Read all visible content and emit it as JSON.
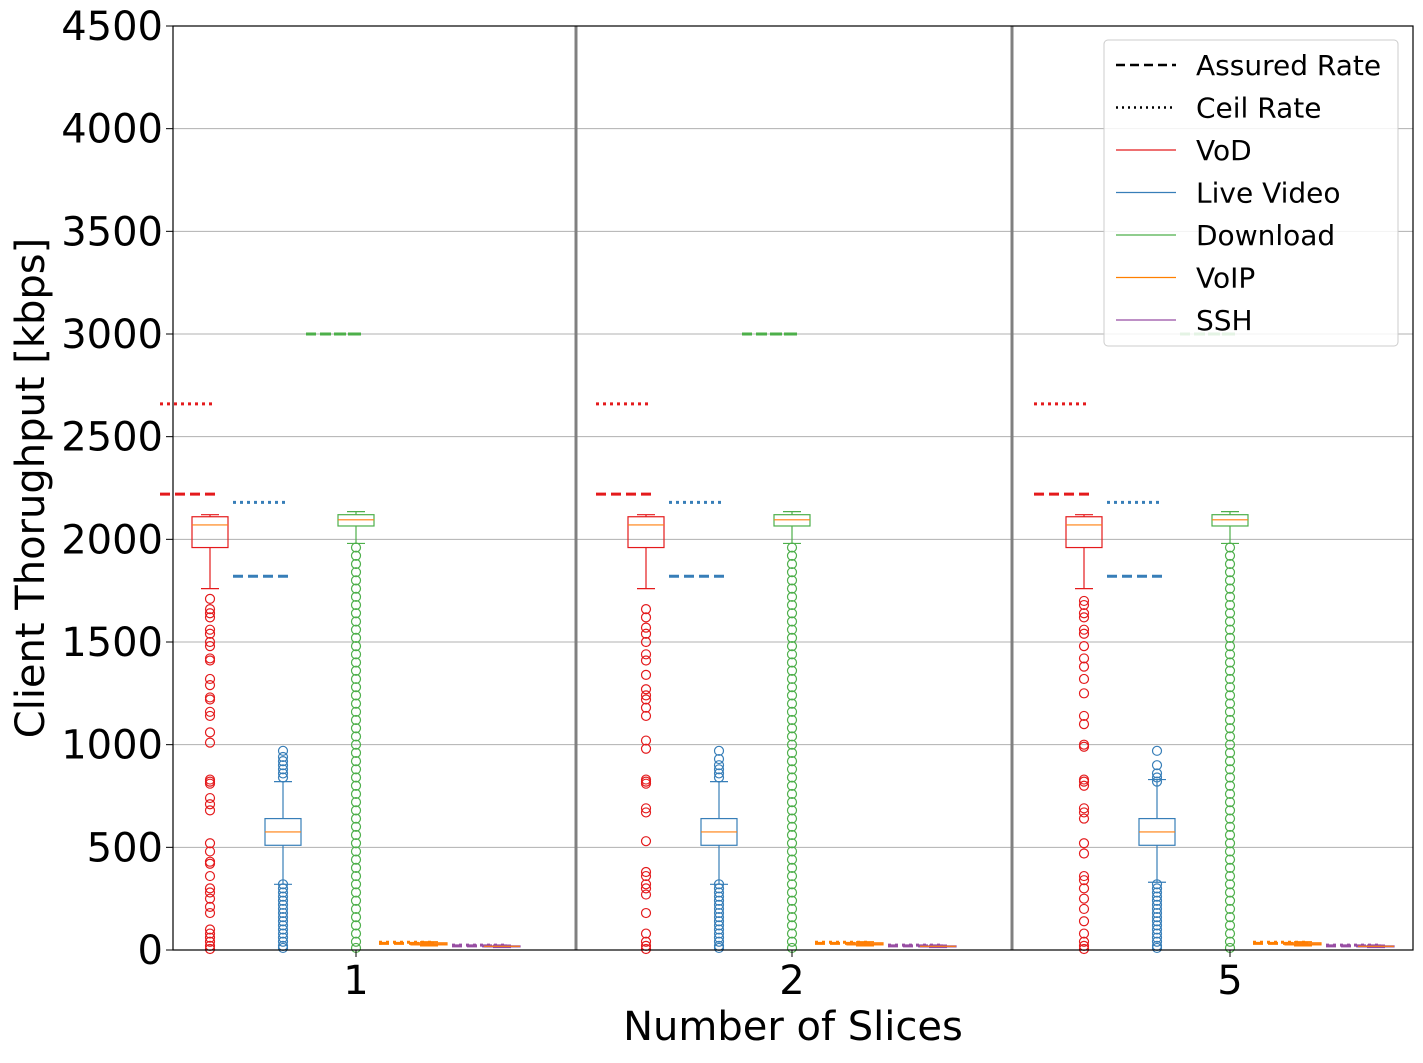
{
  "chart_data": {
    "type": "box",
    "title": "",
    "xlabel": "Number of Slices",
    "ylabel": "Client Thorughput [kbps]",
    "ylim": [
      0,
      4500
    ],
    "yticks": [
      0,
      500,
      1000,
      1500,
      2000,
      2500,
      3000,
      3500,
      4000,
      4500
    ],
    "ytick_labels": [
      "0",
      "500",
      "1000",
      "1500",
      "2000",
      "2500",
      "3000",
      "3500",
      "4000",
      "4500"
    ],
    "categories": [
      "1",
      "2",
      "5"
    ],
    "grid": "horizontal",
    "legend_position": "top-right",
    "legend": [
      {
        "label": "Assured Rate",
        "style": "dashed",
        "color": "#000000"
      },
      {
        "label": "Ceil Rate",
        "style": "dotted",
        "color": "#000000"
      },
      {
        "label": "VoD",
        "style": "solid",
        "color": "#e41a1c"
      },
      {
        "label": "Live Video",
        "style": "solid",
        "color": "#377eb8"
      },
      {
        "label": "Download",
        "style": "solid",
        "color": "#4daf4a"
      },
      {
        "label": "VoIP",
        "style": "solid",
        "color": "#ff7f00"
      },
      {
        "label": "SSH",
        "style": "solid",
        "color": "#984ea3"
      }
    ],
    "series": [
      {
        "name": "VoD",
        "color": "#e41a1c",
        "assured_rate": 2220,
        "ceil_rate": 2660
      },
      {
        "name": "Live Video",
        "color": "#377eb8",
        "assured_rate": 1820,
        "ceil_rate": 2180
      },
      {
        "name": "Download",
        "color": "#4daf4a",
        "assured_rate": 3000,
        "ceil_rate": 3000
      },
      {
        "name": "VoIP",
        "color": "#ff7f00",
        "assured_rate": 32,
        "ceil_rate": 38
      },
      {
        "name": "SSH",
        "color": "#984ea3",
        "assured_rate": 20,
        "ceil_rate": 24
      }
    ],
    "groups": [
      {
        "category": "1",
        "boxes": [
          {
            "series": "VoD",
            "whislo": 1760,
            "q1": 1960,
            "med": 2070,
            "q3": 2110,
            "whishi": 2120,
            "fliers": [
              1710,
              1660,
              1640,
              1620,
              1560,
              1540,
              1500,
              1480,
              1420,
              1410,
              1320,
              1290,
              1230,
              1220,
              1160,
              1140,
              1060,
              1010,
              830,
              820,
              810,
              740,
              710,
              680,
              520,
              480,
              430,
              420,
              360,
              300,
              280,
              250,
              210,
              180,
              100,
              80,
              60,
              40,
              20,
              5
            ]
          },
          {
            "series": "Live Video",
            "whislo": 320,
            "q1": 510,
            "med": 575,
            "q3": 640,
            "whishi": 820,
            "fliers": [
              970,
              940,
              920,
              900,
              880,
              860,
              840,
              320,
              300,
              280,
              260,
              240,
              220,
              200,
              180,
              160,
              140,
              120,
              100,
              80,
              60,
              40,
              20,
              10
            ]
          },
          {
            "series": "Download",
            "whislo": 1980,
            "q1": 2065,
            "med": 2095,
            "q3": 2120,
            "whishi": 2135,
            "fliers": [
              1960,
              1920,
              1880,
              1840,
              1800,
              1760,
              1720,
              1680,
              1640,
              1600,
              1560,
              1520,
              1480,
              1440,
              1400,
              1360,
              1320,
              1280,
              1240,
              1200,
              1160,
              1120,
              1080,
              1040,
              1000,
              960,
              920,
              880,
              840,
              800,
              760,
              720,
              680,
              640,
              600,
              560,
              520,
              480,
              440,
              400,
              360,
              320,
              280,
              240,
              200,
              160,
              120,
              80,
              40,
              10
            ]
          },
          {
            "series": "VoIP",
            "whislo": 20,
            "q1": 25,
            "med": 30,
            "q3": 35,
            "whishi": 40,
            "fliers": []
          },
          {
            "series": "SSH",
            "whislo": 12,
            "q1": 16,
            "med": 18,
            "q3": 20,
            "whishi": 24,
            "fliers": []
          }
        ]
      },
      {
        "category": "2",
        "boxes": [
          {
            "series": "VoD",
            "whislo": 1760,
            "q1": 1960,
            "med": 2070,
            "q3": 2110,
            "whishi": 2120,
            "fliers": [
              1660,
              1620,
              1570,
              1540,
              1500,
              1440,
              1410,
              1340,
              1270,
              1240,
              1220,
              1180,
              1140,
              1020,
              980,
              830,
              820,
              810,
              690,
              670,
              530,
              380,
              360,
              320,
              300,
              270,
              180,
              80,
              40,
              20,
              5
            ]
          },
          {
            "series": "Live Video",
            "whislo": 320,
            "q1": 510,
            "med": 575,
            "q3": 640,
            "whishi": 820,
            "fliers": [
              970,
              930,
              900,
              880,
              860,
              840,
              320,
              300,
              280,
              260,
              240,
              220,
              200,
              180,
              160,
              140,
              120,
              100,
              80,
              60,
              40,
              20,
              10
            ]
          },
          {
            "series": "Download",
            "whislo": 1980,
            "q1": 2065,
            "med": 2095,
            "q3": 2120,
            "whishi": 2135,
            "fliers": [
              1960,
              1920,
              1880,
              1840,
              1800,
              1760,
              1720,
              1680,
              1640,
              1600,
              1560,
              1520,
              1480,
              1440,
              1400,
              1360,
              1320,
              1280,
              1240,
              1200,
              1160,
              1120,
              1080,
              1040,
              1000,
              960,
              920,
              880,
              840,
              800,
              760,
              720,
              680,
              640,
              600,
              560,
              520,
              480,
              440,
              400,
              360,
              320,
              280,
              240,
              200,
              160,
              120,
              80,
              40,
              10
            ]
          },
          {
            "series": "VoIP",
            "whislo": 20,
            "q1": 25,
            "med": 30,
            "q3": 35,
            "whishi": 40,
            "fliers": []
          },
          {
            "series": "SSH",
            "whislo": 12,
            "q1": 16,
            "med": 18,
            "q3": 20,
            "whishi": 24,
            "fliers": []
          }
        ]
      },
      {
        "category": "5",
        "boxes": [
          {
            "series": "VoD",
            "whislo": 1760,
            "q1": 1960,
            "med": 2070,
            "q3": 2110,
            "whishi": 2120,
            "fliers": [
              1700,
              1680,
              1640,
              1620,
              1560,
              1540,
              1480,
              1420,
              1380,
              1320,
              1250,
              1140,
              1100,
              1000,
              990,
              830,
              820,
              800,
              690,
              670,
              640,
              520,
              470,
              360,
              340,
              300,
              250,
              200,
              140,
              80,
              40,
              20,
              5
            ]
          },
          {
            "series": "Live Video",
            "whislo": 330,
            "q1": 510,
            "med": 575,
            "q3": 640,
            "whishi": 830,
            "fliers": [
              970,
              900,
              860,
              840,
              820,
              320,
              300,
              280,
              260,
              240,
              220,
              200,
              180,
              160,
              140,
              120,
              100,
              80,
              60,
              40,
              20,
              10
            ]
          },
          {
            "series": "Download",
            "whislo": 1980,
            "q1": 2065,
            "med": 2095,
            "q3": 2120,
            "whishi": 2135,
            "fliers": [
              1960,
              1920,
              1880,
              1840,
              1800,
              1760,
              1720,
              1680,
              1640,
              1600,
              1560,
              1520,
              1480,
              1440,
              1400,
              1360,
              1320,
              1280,
              1240,
              1200,
              1160,
              1120,
              1080,
              1040,
              1000,
              960,
              920,
              880,
              840,
              800,
              760,
              720,
              680,
              640,
              600,
              560,
              520,
              480,
              440,
              400,
              360,
              320,
              280,
              240,
              200,
              160,
              120,
              80,
              40,
              10
            ]
          },
          {
            "series": "VoIP",
            "whislo": 20,
            "q1": 25,
            "med": 30,
            "q3": 35,
            "whishi": 40,
            "fliers": []
          },
          {
            "series": "SSH",
            "whislo": 12,
            "q1": 16,
            "med": 18,
            "q3": 20,
            "whishi": 24,
            "fliers": []
          }
        ]
      }
    ]
  }
}
